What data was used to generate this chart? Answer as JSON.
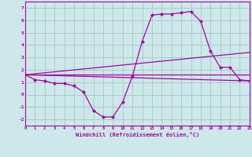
{
  "background_color": "#cce8e8",
  "grid_color": "#aacccc",
  "line_color": "#aa00aa",
  "xlabel": "Windchill (Refroidissement éolien,°C)",
  "xlim": [
    0,
    23
  ],
  "ylim": [
    -2.5,
    7.5
  ],
  "xticks": [
    0,
    1,
    2,
    3,
    4,
    5,
    6,
    7,
    8,
    9,
    10,
    11,
    12,
    13,
    14,
    15,
    16,
    17,
    18,
    19,
    20,
    21,
    22,
    23
  ],
  "yticks": [
    -2,
    -1,
    0,
    1,
    2,
    3,
    4,
    5,
    6,
    7
  ],
  "series": [
    {
      "x": [
        0,
        1,
        2,
        3,
        4,
        5,
        6,
        7,
        8,
        9,
        10,
        11,
        12,
        13,
        14,
        15,
        16,
        17,
        18,
        19,
        20,
        21,
        22,
        23
      ],
      "y": [
        1.6,
        1.2,
        1.1,
        0.9,
        0.9,
        0.7,
        0.2,
        -1.3,
        -1.8,
        -1.8,
        -0.6,
        1.5,
        4.3,
        6.4,
        6.5,
        6.5,
        6.6,
        6.7,
        5.9,
        3.5,
        2.2,
        2.2,
        1.2,
        1.1
      ],
      "marker": "D",
      "markersize": 2.0,
      "linewidth": 0.9
    },
    {
      "x": [
        0,
        23
      ],
      "y": [
        1.6,
        1.6
      ],
      "marker": null,
      "markersize": 0,
      "linewidth": 0.9
    },
    {
      "x": [
        0,
        23
      ],
      "y": [
        1.6,
        1.1
      ],
      "marker": null,
      "markersize": 0,
      "linewidth": 0.9
    },
    {
      "x": [
        0,
        23
      ],
      "y": [
        1.6,
        3.4
      ],
      "marker": null,
      "markersize": 0,
      "linewidth": 0.9
    }
  ]
}
